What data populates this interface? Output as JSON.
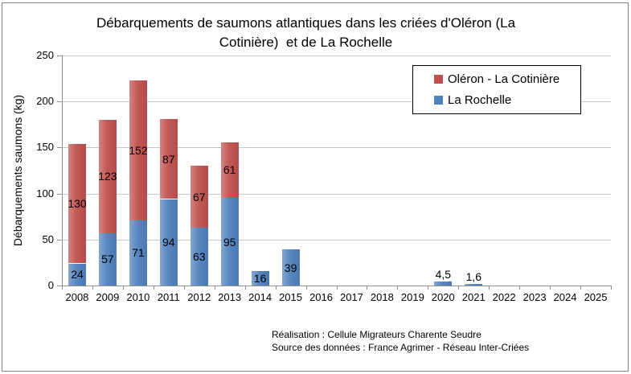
{
  "title": {
    "line1": "Débarquements de saumons atlantiques dans les criées d'Oléron (La",
    "line2": "Cotinière)  et de La Rochelle"
  },
  "footer": {
    "line1": "Réalisation : Cellule Migrateurs Charente Seudre",
    "line2": "Source des données : France Agrimer - Réseau Inter-Criées"
  },
  "chart_data": {
    "type": "bar",
    "stacked": true,
    "title": "Débarquements de saumons atlantiques dans les criées d'Oléron (La Cotinière)  et de La Rochelle",
    "xlabel": "",
    "ylabel": "Débarquements saumons (kg)",
    "ylim": [
      0,
      250
    ],
    "ytick_step": 50,
    "grid": true,
    "legend_position": "top-right-inside",
    "categories": [
      "2008",
      "2009",
      "2010",
      "2011",
      "2012",
      "2013",
      "2014",
      "2015",
      "2016",
      "2017",
      "2018",
      "2019",
      "2020",
      "2021",
      "2022",
      "2023",
      "2024",
      "2025"
    ],
    "series": [
      {
        "name": "La Rochelle",
        "color": "#4F81BD",
        "values": [
          24,
          57,
          71,
          94,
          63,
          95,
          16,
          39,
          0,
          0,
          0,
          0,
          4.5,
          1.6,
          0,
          0,
          0,
          0
        ],
        "labels": [
          "24",
          "57",
          "71",
          "94",
          "63",
          "95",
          "16",
          "39",
          "",
          "",
          "",
          "",
          "4,5",
          "1,6",
          "",
          "",
          "",
          ""
        ]
      },
      {
        "name": "Oléron - La Cotinière",
        "color": "#C0504D",
        "values": [
          130,
          123,
          152,
          87,
          67,
          61,
          0,
          0,
          0,
          0,
          0,
          0,
          0,
          0,
          0,
          0,
          0,
          0
        ],
        "labels": [
          "130",
          "123",
          "152",
          "87",
          "67",
          "61",
          "",
          "",
          "",
          "",
          "",
          "",
          "",
          "",
          "",
          "",
          "",
          ""
        ]
      }
    ],
    "colors": {
      "gridline": "#C6C6C6",
      "axis": "#8E8E8E",
      "figure_border": "#848484",
      "legend_border": "#000000"
    }
  }
}
